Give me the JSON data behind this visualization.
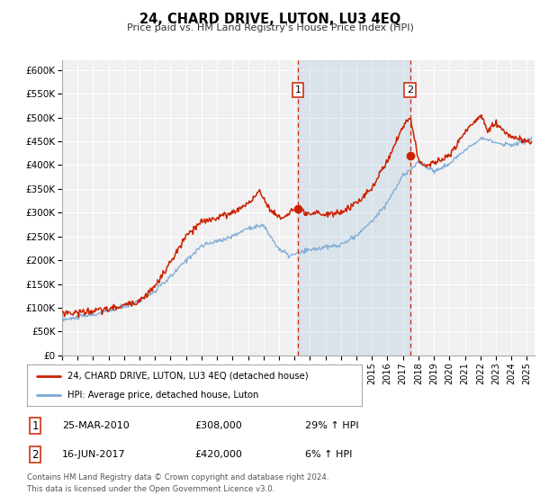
{
  "title": "24, CHARD DRIVE, LUTON, LU3 4EQ",
  "subtitle": "Price paid vs. HM Land Registry's House Price Index (HPI)",
  "xlim": [
    1995,
    2025.5
  ],
  "ylim": [
    0,
    620000
  ],
  "yticks": [
    0,
    50000,
    100000,
    150000,
    200000,
    250000,
    300000,
    350000,
    400000,
    450000,
    500000,
    550000,
    600000
  ],
  "ytick_labels": [
    "£0",
    "£50K",
    "£100K",
    "£150K",
    "£200K",
    "£250K",
    "£300K",
    "£350K",
    "£400K",
    "£450K",
    "£500K",
    "£550K",
    "£600K"
  ],
  "hpi_color": "#7aa8d4",
  "price_color": "#cc2200",
  "sale1_x": 2010.23,
  "sale1_y": 308000,
  "sale2_x": 2017.46,
  "sale2_y": 420000,
  "vline1_x": 2010.23,
  "vline2_x": 2017.46,
  "legend_line1": "24, CHARD DRIVE, LUTON, LU3 4EQ (detached house)",
  "legend_line2": "HPI: Average price, detached house, Luton",
  "table_row1": [
    "1",
    "25-MAR-2010",
    "£308,000",
    "29% ↑ HPI"
  ],
  "table_row2": [
    "2",
    "16-JUN-2017",
    "£420,000",
    "6% ↑ HPI"
  ],
  "footnote1": "Contains HM Land Registry data © Crown copyright and database right 2024.",
  "footnote2": "This data is licensed under the Open Government Licence v3.0.",
  "background_color": "#ffffff",
  "plot_bg_color": "#f0f0f0"
}
